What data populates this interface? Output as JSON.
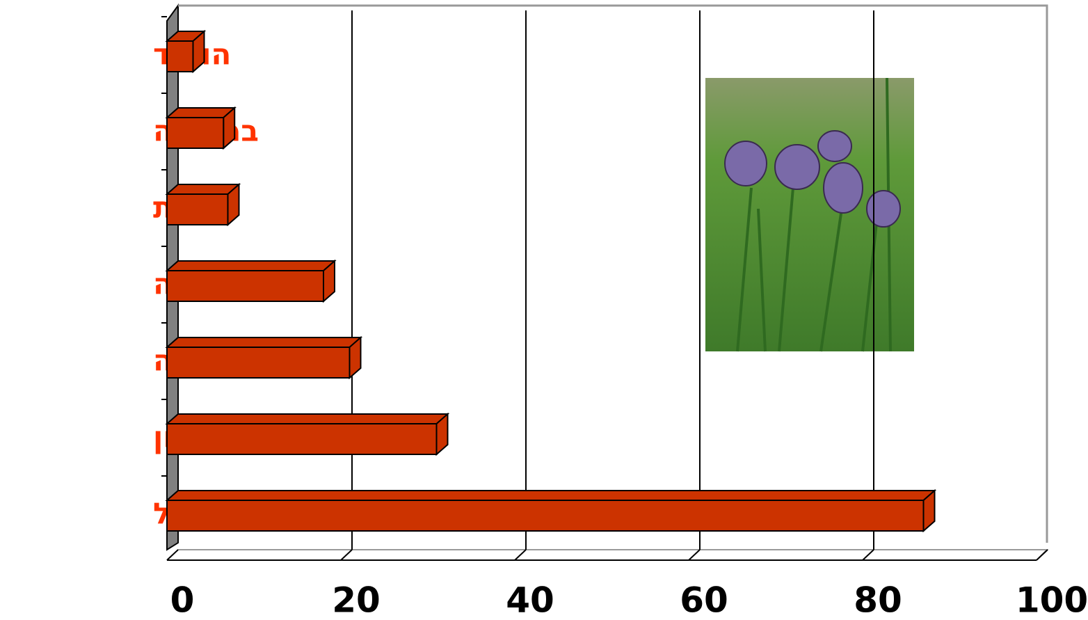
{
  "chart_data": {
    "type": "bar",
    "orientation": "horizontal",
    "three_d": true,
    "categories": [
      "הולנד",
      "בריטניה",
      "צרפת",
      "איטליה",
      "קליפורניה",
      "יוון",
      "ישראל"
    ],
    "values": [
      3,
      6.5,
      7,
      18,
      21,
      31,
      87
    ],
    "color": "#cc3300",
    "label_color": "#ff3300",
    "xlim": [
      0,
      100
    ],
    "xticks": [
      0,
      20,
      40,
      60,
      80,
      100
    ],
    "grid": true
  }
}
